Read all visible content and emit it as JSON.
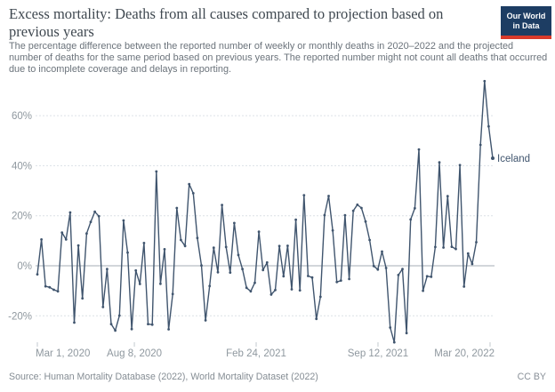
{
  "header": {
    "title": "Excess mortality: Deaths from all causes compared to projection based on previous years",
    "subtitle": "The percentage difference between the reported number of weekly or monthly deaths in 2020–2022 and the projected number of deaths for the same period based on previous years. The reported number might not count all deaths that occurred due to incomplete coverage and delays in reporting.",
    "logo": {
      "line1": "Our World",
      "line2": "in Data",
      "bg_color": "#1d3d63",
      "accent_color": "#d93a2b"
    }
  },
  "chart_data": {
    "type": "line",
    "title": "Excess mortality: Deaths from all causes compared to projection based on previous years",
    "unit": "%",
    "grid": "horizontal dashed, solid zero line",
    "legend_position": "label at end of line",
    "ylim": [
      -33,
      76
    ],
    "y_ticks": [
      {
        "value": 60,
        "label": "60%"
      },
      {
        "value": 40,
        "label": "40%"
      },
      {
        "value": 20,
        "label": "20%"
      },
      {
        "value": 0,
        "label": "0%"
      },
      {
        "value": -20,
        "label": "-20%"
      }
    ],
    "x_ticks": [
      {
        "label": "Mar 1, 2020",
        "pos": 0.0,
        "anchor": "start"
      },
      {
        "label": "Aug 8, 2020",
        "pos": 0.213,
        "anchor": "middle"
      },
      {
        "label": "Feb 24, 2021",
        "pos": 0.4805,
        "anchor": "middle"
      },
      {
        "label": "Sep 12, 2021",
        "pos": 0.748,
        "anchor": "middle"
      },
      {
        "label": "Mar 20, 2022",
        "pos": 0.9941,
        "anchor": "end"
      }
    ],
    "series": [
      {
        "name": "Iceland",
        "color": "#40556e",
        "cadence": "weekly",
        "values": [
          -3.4,
          10.5,
          -8.2,
          -8.6,
          -9.6,
          -10.2,
          13.3,
          10.5,
          21.3,
          -22.7,
          8.1,
          -13,
          12.9,
          17.5,
          21.6,
          19.8,
          -16.5,
          -1.3,
          -23.3,
          -25.9,
          -19.9,
          18.1,
          5.3,
          -25.3,
          -1.9,
          -7.3,
          9.1,
          -23.3,
          -23.5,
          37.7,
          -7.2,
          6.6,
          -25.4,
          -11.3,
          23.1,
          10.3,
          7.9,
          32.6,
          29,
          11.1,
          0.1,
          -21.8,
          -8.1,
          7.2,
          -2.6,
          24.3,
          7.5,
          -2.7,
          17.1,
          4.3,
          -1.3,
          -8.8,
          -10.2,
          -6.8,
          13.6,
          -1.7,
          1.3,
          -11.5,
          -9.7,
          7.9,
          -4.2,
          8,
          -9.4,
          18.4,
          -9.8,
          28.2,
          -4.1,
          -4.7,
          -21.2,
          -12.4,
          20.2,
          27.9,
          14.1,
          -6.5,
          -5.9,
          20.2,
          -5.3,
          22,
          24.4,
          23.1,
          17.7,
          10.3,
          -0.1,
          -1.5,
          5.7,
          -0.9,
          -24.7,
          -30.6,
          -3.7,
          -1.3,
          -26.9,
          18.5,
          23,
          46.5,
          -10,
          -4.2,
          -4.4,
          7.5,
          41.3,
          7.3,
          27.8,
          7.6,
          6.7,
          40.2,
          -8.3,
          4.9,
          0.7,
          9.4,
          48.3,
          73.8,
          55.7,
          43
        ]
      }
    ]
  },
  "footer": {
    "source": "Source: Human Mortality Database (2022), World Mortality Dataset (2022)",
    "license": "CC BY"
  }
}
